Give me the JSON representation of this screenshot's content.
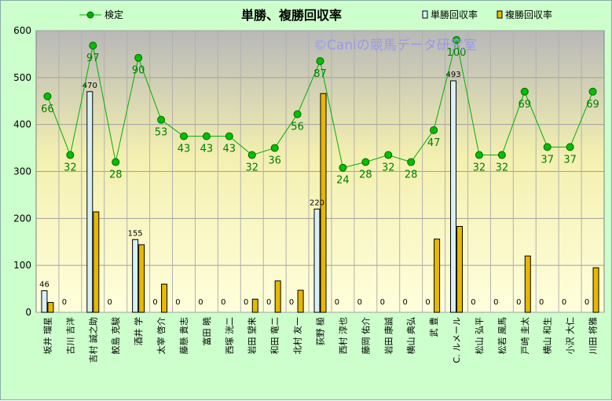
{
  "chart_data": {
    "type": "bar",
    "title": "単勝、複勝回収率",
    "watermark": "©Caniの競馬データ研究室",
    "ylim": [
      0,
      600
    ],
    "yticks": [
      0,
      100,
      200,
      300,
      400,
      500,
      600
    ],
    "grid": true,
    "legend_position": "top",
    "categories": [
      "坂井 瑠星",
      "古川 吉洋",
      "吉村 誠之助",
      "鮫島 克駿",
      "酒井 学",
      "太宰 啓介",
      "藤懸 貴志",
      "富田 暁",
      "西塚 洸二",
      "岩田 望来",
      "和田 竜二",
      "北村 友一",
      "荻野 極",
      "西村 淳也",
      "藤岡 佑介",
      "岩田 康誠",
      "横山 典弘",
      "武 豊",
      "C. ルメール",
      "松山 弘平",
      "松若 風馬",
      "戸崎 圭太",
      "横山 和生",
      "小沢 大仁",
      "川田 将雅"
    ],
    "series": [
      {
        "name": "単勝回収率",
        "type": "bar",
        "color": "#d8f0f8",
        "values": [
          46,
          0,
          470,
          0,
          155,
          0,
          0,
          0,
          0,
          0,
          0,
          0,
          220,
          0,
          0,
          0,
          0,
          0,
          493,
          0,
          0,
          0,
          0,
          0,
          0
        ],
        "labels": [
          "46",
          "0",
          "470",
          "0",
          "155",
          "0",
          "0",
          "0",
          "0",
          "0",
          "0",
          "0",
          "220",
          "0",
          "0",
          "0",
          "0",
          "0",
          "493",
          "0",
          "0",
          "0",
          "0",
          "0",
          "0"
        ]
      },
      {
        "name": "複勝回収率",
        "type": "bar",
        "color": "#e8b800",
        "values": [
          21,
          0,
          214,
          0,
          144,
          60,
          0,
          0,
          0,
          28,
          67,
          47,
          466,
          0,
          0,
          0,
          0,
          156,
          183,
          0,
          0,
          120,
          0,
          0,
          95
        ]
      },
      {
        "name": "検定",
        "type": "line",
        "color": "#00b000",
        "values": [
          460,
          335,
          568,
          320,
          542,
          410,
          375,
          375,
          375,
          335,
          350,
          422,
          535,
          308,
          320,
          335,
          320,
          388,
          580,
          335,
          335,
          470,
          352,
          352,
          470
        ],
        "labels": [
          "66",
          "32",
          "97",
          "28",
          "90",
          "53",
          "43",
          "43",
          "43",
          "32",
          "36",
          "56",
          "87",
          "24",
          "28",
          "32",
          "28",
          "47",
          "100",
          "32",
          "32",
          "69",
          "37",
          "37",
          "69"
        ]
      }
    ]
  }
}
